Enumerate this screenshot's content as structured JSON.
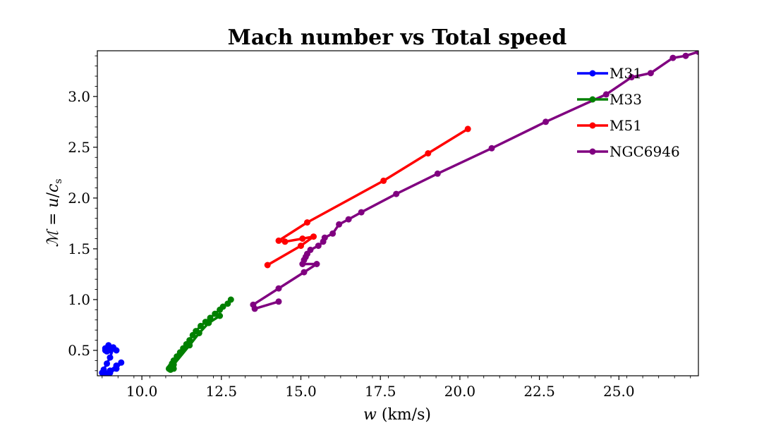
{
  "chart_data": {
    "type": "line",
    "title": "Mach number vs Total speed",
    "xlabel_italic": "w",
    "xlabel_rest": " (km/s)",
    "ylabel_script": "ℳ",
    "ylabel_eq": " = ",
    "ylabel_u": "u",
    "ylabel_slash": "/",
    "ylabel_c": "c",
    "ylabel_sub": "s",
    "xlim": [
      8.6,
      27.5
    ],
    "ylim": [
      0.25,
      3.45
    ],
    "xticks": [
      10.0,
      12.5,
      15.0,
      17.5,
      20.0,
      22.5,
      25.0
    ],
    "xtick_labels": [
      "10.0",
      "12.5",
      "15.0",
      "17.5",
      "20.0",
      "22.5",
      "25.0"
    ],
    "yticks": [
      0.5,
      1.0,
      1.5,
      2.0,
      2.5,
      3.0
    ],
    "ytick_labels": [
      "0.5",
      "1.0",
      "1.5",
      "2.0",
      "2.5",
      "3.0"
    ],
    "legend_position": "top-right",
    "series": [
      {
        "name": "M31",
        "color": "#0000ff",
        "x": [
          9.2,
          9.1,
          8.95,
          8.85,
          8.85,
          8.9,
          9.0,
          9.1,
          9.0,
          8.9,
          8.8,
          8.75,
          8.85,
          9.0,
          9.2,
          9.35,
          9.2,
          9.0,
          8.9
        ],
        "y": [
          0.5,
          0.53,
          0.55,
          0.52,
          0.5,
          0.49,
          0.5,
          0.52,
          0.43,
          0.37,
          0.31,
          0.28,
          0.26,
          0.28,
          0.32,
          0.38,
          0.35,
          0.3,
          0.27
        ]
      },
      {
        "name": "M33",
        "color": "#008000",
        "x": [
          12.8,
          12.7,
          12.55,
          12.45,
          12.3,
          12.15,
          12.0,
          11.85,
          11.7,
          11.6,
          11.5,
          11.4,
          11.3,
          11.2,
          11.1,
          11.0,
          10.95,
          10.9,
          10.85,
          10.9,
          11.0,
          11.0,
          11.5,
          11.8,
          12.1,
          12.45
        ],
        "y": [
          1.0,
          0.96,
          0.93,
          0.9,
          0.86,
          0.82,
          0.78,
          0.74,
          0.69,
          0.65,
          0.6,
          0.56,
          0.52,
          0.48,
          0.44,
          0.4,
          0.37,
          0.34,
          0.32,
          0.31,
          0.32,
          0.36,
          0.55,
          0.67,
          0.77,
          0.84
        ]
      },
      {
        "name": "M51",
        "color": "#ff0000",
        "x": [
          20.25,
          19.0,
          17.6,
          15.2,
          14.3,
          14.5,
          15.05,
          15.4,
          15.0,
          13.95
        ],
        "y": [
          2.68,
          2.44,
          2.17,
          1.76,
          1.58,
          1.57,
          1.6,
          1.62,
          1.53,
          1.34
        ]
      },
      {
        "name": "NGC6946",
        "color": "#800080",
        "x": [
          27.5,
          27.1,
          26.7,
          26.0,
          25.4,
          24.6,
          22.7,
          21.0,
          19.3,
          18.0,
          16.9,
          16.5,
          16.2,
          16.0,
          15.75,
          15.7,
          15.55,
          15.3,
          15.2,
          15.15,
          15.1,
          15.05,
          15.5,
          15.1,
          14.3,
          13.5,
          13.55,
          14.3
        ],
        "y": [
          3.44,
          3.4,
          3.38,
          3.23,
          3.19,
          3.02,
          2.75,
          2.49,
          2.24,
          2.04,
          1.86,
          1.79,
          1.74,
          1.65,
          1.61,
          1.57,
          1.53,
          1.49,
          1.45,
          1.42,
          1.39,
          1.35,
          1.35,
          1.27,
          1.11,
          0.95,
          0.91,
          0.98
        ]
      }
    ]
  }
}
